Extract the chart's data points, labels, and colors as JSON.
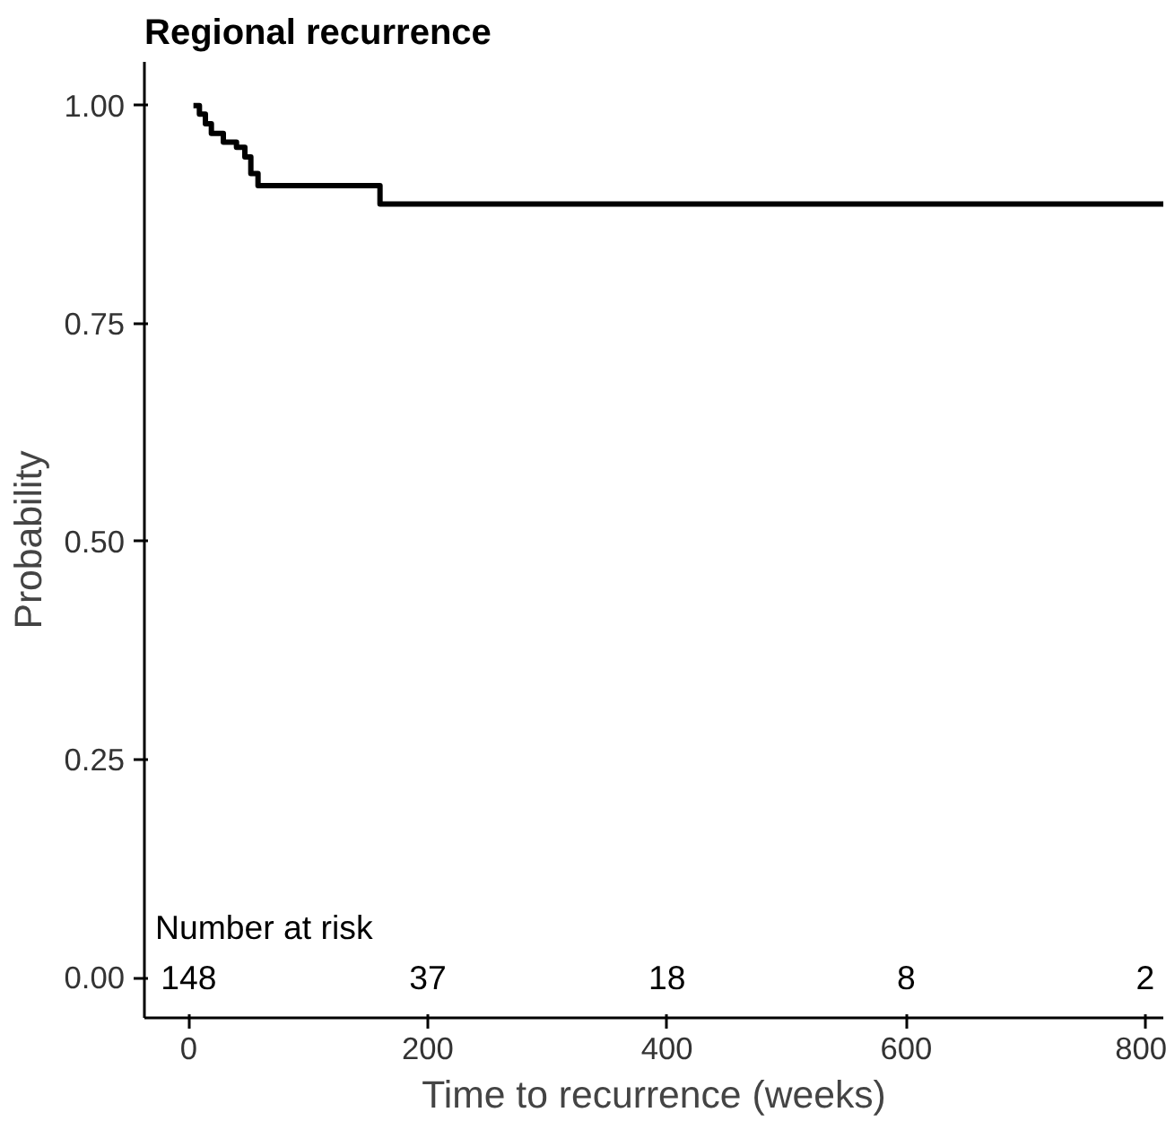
{
  "chart_data": {
    "type": "step",
    "title": "Regional recurrence",
    "xlabel": "Time to recurrence (weeks)",
    "ylabel": "Probability",
    "x": [
      4,
      9,
      14,
      19,
      29,
      40,
      47,
      52,
      58,
      160,
      815
    ],
    "series": [
      {
        "color": "#000000",
        "values": [
          1.0,
          0.99,
          0.979,
          0.968,
          0.958,
          0.952,
          0.941,
          0.922,
          0.908,
          0.887,
          0.887
        ]
      }
    ],
    "xlim": [
      -37,
      815
    ],
    "ylim": [
      -0.046,
      1.05
    ],
    "xticks": [
      0,
      200,
      400,
      600,
      800
    ],
    "yticks": [
      {
        "value": 0,
        "label": "0.00"
      },
      {
        "value": 0.25,
        "label": "0.25"
      },
      {
        "value": 0.5,
        "label": "0.50"
      },
      {
        "value": 0.75,
        "label": "0.75"
      },
      {
        "value": 1,
        "label": "1.00"
      }
    ],
    "grid": false,
    "annotations": [
      "Number at risk",
      "148",
      "37",
      "18",
      "8",
      "2"
    ]
  }
}
